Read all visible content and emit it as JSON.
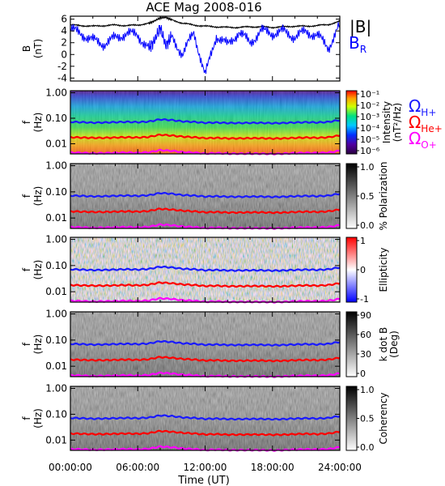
{
  "title": "ACE Mag 2008-016",
  "x_axis": {
    "label": "Time (UT)",
    "tick_labels": [
      "00:00:00",
      "06:00:00",
      "12:00:00",
      "18:00:00",
      "24:00:00"
    ],
    "tick_hours": [
      0,
      6,
      12,
      18,
      24
    ],
    "range_hours": [
      0,
      24
    ]
  },
  "legend_top": {
    "b_total": "|B|",
    "b_r_main": "B",
    "b_r_sub": "R"
  },
  "legend_gyro": [
    {
      "main": "Ω",
      "sub": "H+",
      "color": "#1a1aff"
    },
    {
      "main": "Ω",
      "sub": "He+",
      "color": "#ff0000"
    },
    {
      "main": "Ω",
      "sub": "O+",
      "color": "#ff00ff"
    }
  ],
  "colors": {
    "b_total": "#000000",
    "b_r": "#0000ff",
    "h_gyro": "#1a1aff",
    "he_gyro": "#ff0000",
    "o_gyro": "#ff00ff"
  },
  "chart_data": [
    {
      "type": "line",
      "panel": "magnetic-field",
      "ylabel_main": "B",
      "ylabel_unit": "(nT)",
      "ylim": [
        -4.5,
        6.5
      ],
      "y_ticks": [
        6,
        4,
        2,
        0,
        -2,
        -4
      ],
      "y_tick_labels": [
        "6",
        "4",
        "2",
        "0",
        "-2",
        "-4"
      ],
      "x_hours": [
        0,
        1,
        2,
        3,
        4,
        5,
        6,
        7,
        7.5,
        8,
        8.5,
        9,
        10,
        11,
        12,
        13,
        14,
        15,
        16,
        17,
        18,
        19,
        20,
        21,
        22,
        23,
        24
      ],
      "series": [
        {
          "name": "|B|",
          "values": [
            5.0,
            4.9,
            4.8,
            4.9,
            5.0,
            4.9,
            5.0,
            5.3,
            5.7,
            6.2,
            6.3,
            5.9,
            5.3,
            5.0,
            4.8,
            4.7,
            4.6,
            4.6,
            4.7,
            4.7,
            4.6,
            4.7,
            4.8,
            4.8,
            4.9,
            5.1,
            5.6
          ]
        },
        {
          "name": "BR",
          "values": [
            4.3,
            3.5,
            2.4,
            1.8,
            2.8,
            3.6,
            3.3,
            1.0,
            2.4,
            4.6,
            1.5,
            3.0,
            0.0,
            3.8,
            -3.6,
            3.2,
            1.6,
            3.8,
            2.0,
            4.0,
            3.6,
            3.9,
            3.0,
            3.9,
            3.2,
            1.2,
            5.0
          ]
        }
      ]
    },
    {
      "type": "heatmap",
      "panel": "intensity",
      "ylabel_main": "f",
      "ylabel_unit": "(Hz)",
      "y_scale": "log",
      "ylim": [
        0.004,
        1.2
      ],
      "y_tick_labels": [
        "1.00",
        "0.10",
        "0.01"
      ],
      "y_ticks": [
        1.0,
        0.1,
        0.01
      ],
      "colorbar_label": "Intensity",
      "colorbar_unit": "(nT²/Hz)",
      "colorbar_ticks": [
        "10⁻¹",
        "10⁻²",
        "10⁻³",
        "10⁻⁴",
        "10⁻⁵",
        "10⁻⁶"
      ]
    },
    {
      "type": "heatmap",
      "panel": "polarization",
      "ylabel_main": "f",
      "ylabel_unit": "(Hz)",
      "y_scale": "log",
      "ylim": [
        0.004,
        1.2
      ],
      "y_tick_labels": [
        "1.00",
        "0.10",
        "0.01"
      ],
      "y_ticks": [
        1.0,
        0.1,
        0.01
      ],
      "colorbar_label": "% Polarization",
      "colorbar_ticks": [
        "1.0",
        "0.5",
        "0.0"
      ]
    },
    {
      "type": "heatmap",
      "panel": "ellipticity",
      "ylabel_main": "f",
      "ylabel_unit": "(Hz)",
      "y_scale": "log",
      "ylim": [
        0.004,
        1.2
      ],
      "y_tick_labels": [
        "1.00",
        "0.10",
        "0.01"
      ],
      "y_ticks": [
        1.0,
        0.1,
        0.01
      ],
      "colorbar_label": "Ellipticity",
      "colorbar_ticks": [
        "1",
        "0",
        "-1"
      ]
    },
    {
      "type": "heatmap",
      "panel": "k-dot-b",
      "ylabel_main": "f",
      "ylabel_unit": "(Hz)",
      "y_scale": "log",
      "ylim": [
        0.004,
        1.2
      ],
      "y_tick_labels": [
        "1.00",
        "0.10",
        "0.01"
      ],
      "y_ticks": [
        1.0,
        0.1,
        0.01
      ],
      "colorbar_label": "k dot B",
      "colorbar_unit": "(Deg)",
      "colorbar_ticks": [
        "90",
        "60",
        "30",
        "0"
      ]
    },
    {
      "type": "heatmap",
      "panel": "coherency",
      "ylabel_main": "f",
      "ylabel_unit": "(Hz)",
      "y_scale": "log",
      "ylim": [
        0.004,
        1.2
      ],
      "y_tick_labels": [
        "1.00",
        "0.10",
        "0.01"
      ],
      "y_ticks": [
        1.0,
        0.1,
        0.01
      ],
      "colorbar_label": "Coherency",
      "colorbar_ticks": [
        "1.0",
        "0.5",
        "0.0"
      ]
    }
  ],
  "gyrofrequency_lines": {
    "x_hours": [
      0,
      1,
      2,
      3,
      4,
      5,
      6,
      7,
      8,
      9,
      10,
      11,
      12,
      13,
      14,
      15,
      16,
      17,
      18,
      19,
      20,
      21,
      22,
      23,
      24
    ],
    "series": [
      {
        "name": "H+",
        "values_hz": [
          0.072,
          0.07,
          0.067,
          0.068,
          0.07,
          0.072,
          0.07,
          0.074,
          0.09,
          0.085,
          0.075,
          0.072,
          0.066,
          0.068,
          0.065,
          0.065,
          0.066,
          0.066,
          0.064,
          0.065,
          0.068,
          0.07,
          0.068,
          0.072,
          0.085
        ]
      },
      {
        "name": "He+",
        "values_hz": [
          0.018,
          0.0175,
          0.017,
          0.017,
          0.0175,
          0.018,
          0.0175,
          0.0185,
          0.0225,
          0.021,
          0.019,
          0.018,
          0.0165,
          0.017,
          0.0162,
          0.0162,
          0.0165,
          0.0165,
          0.016,
          0.0162,
          0.017,
          0.0175,
          0.017,
          0.018,
          0.021
        ]
      },
      {
        "name": "O+",
        "values_hz": [
          0.0045,
          0.0044,
          0.0042,
          0.0043,
          0.0044,
          0.0045,
          0.0044,
          0.0046,
          0.0056,
          0.0053,
          0.0047,
          0.0045,
          0.0041,
          0.0043,
          0.0041,
          0.0041,
          0.0041,
          0.0041,
          0.004,
          0.0041,
          0.0043,
          0.0044,
          0.0043,
          0.0045,
          0.0053
        ]
      }
    ]
  }
}
